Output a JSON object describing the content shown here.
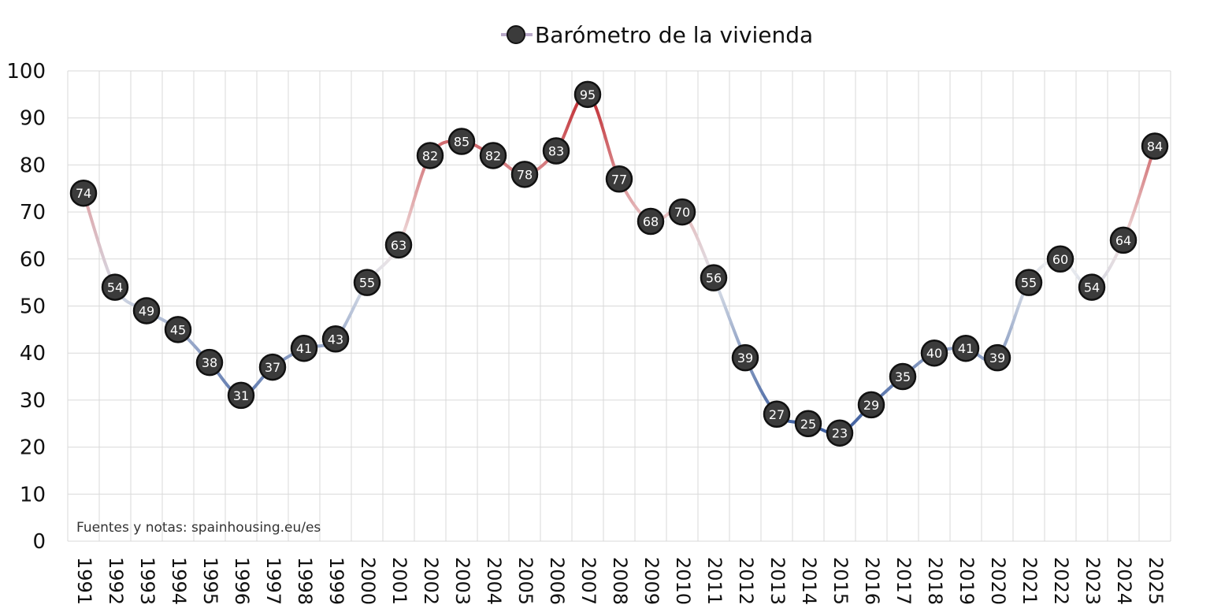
{
  "chart_data": {
    "type": "line",
    "legend": "Barómetro de la vivienda",
    "legend_position": "top",
    "note": "Fuentes y notas: spainhousing.eu/es",
    "ylim": [
      0,
      100
    ],
    "yticks": [
      0,
      10,
      20,
      30,
      40,
      50,
      60,
      70,
      80,
      90,
      100
    ],
    "grid": true,
    "x": [
      "1991",
      "1992",
      "1993",
      "1994",
      "1995",
      "1996",
      "1997",
      "1998",
      "1999",
      "2000",
      "2001",
      "2002",
      "2003",
      "2004",
      "2005",
      "2006",
      "2007",
      "2008",
      "2009",
      "2010",
      "2011",
      "2012",
      "2013",
      "2014",
      "2015",
      "2016",
      "2017",
      "2018",
      "2019",
      "2020",
      "2021",
      "2022",
      "2023",
      "2024",
      "2025"
    ],
    "series": [
      {
        "name": "Barómetro de la vivienda",
        "values": [
          74,
          54,
          49,
          45,
          38,
          31,
          37,
          41,
          43,
          55,
          63,
          82,
          85,
          82,
          78,
          83,
          95,
          77,
          68,
          70,
          56,
          39,
          27,
          25,
          23,
          29,
          35,
          40,
          41,
          39,
          55,
          60,
          54,
          64,
          84
        ]
      }
    ],
    "colors": {
      "low": "#3f5f9f",
      "mid": "#f4f4f4",
      "high": "#c0282e",
      "marker": "#3b3b3b",
      "grid": "#d9d9d9"
    }
  }
}
